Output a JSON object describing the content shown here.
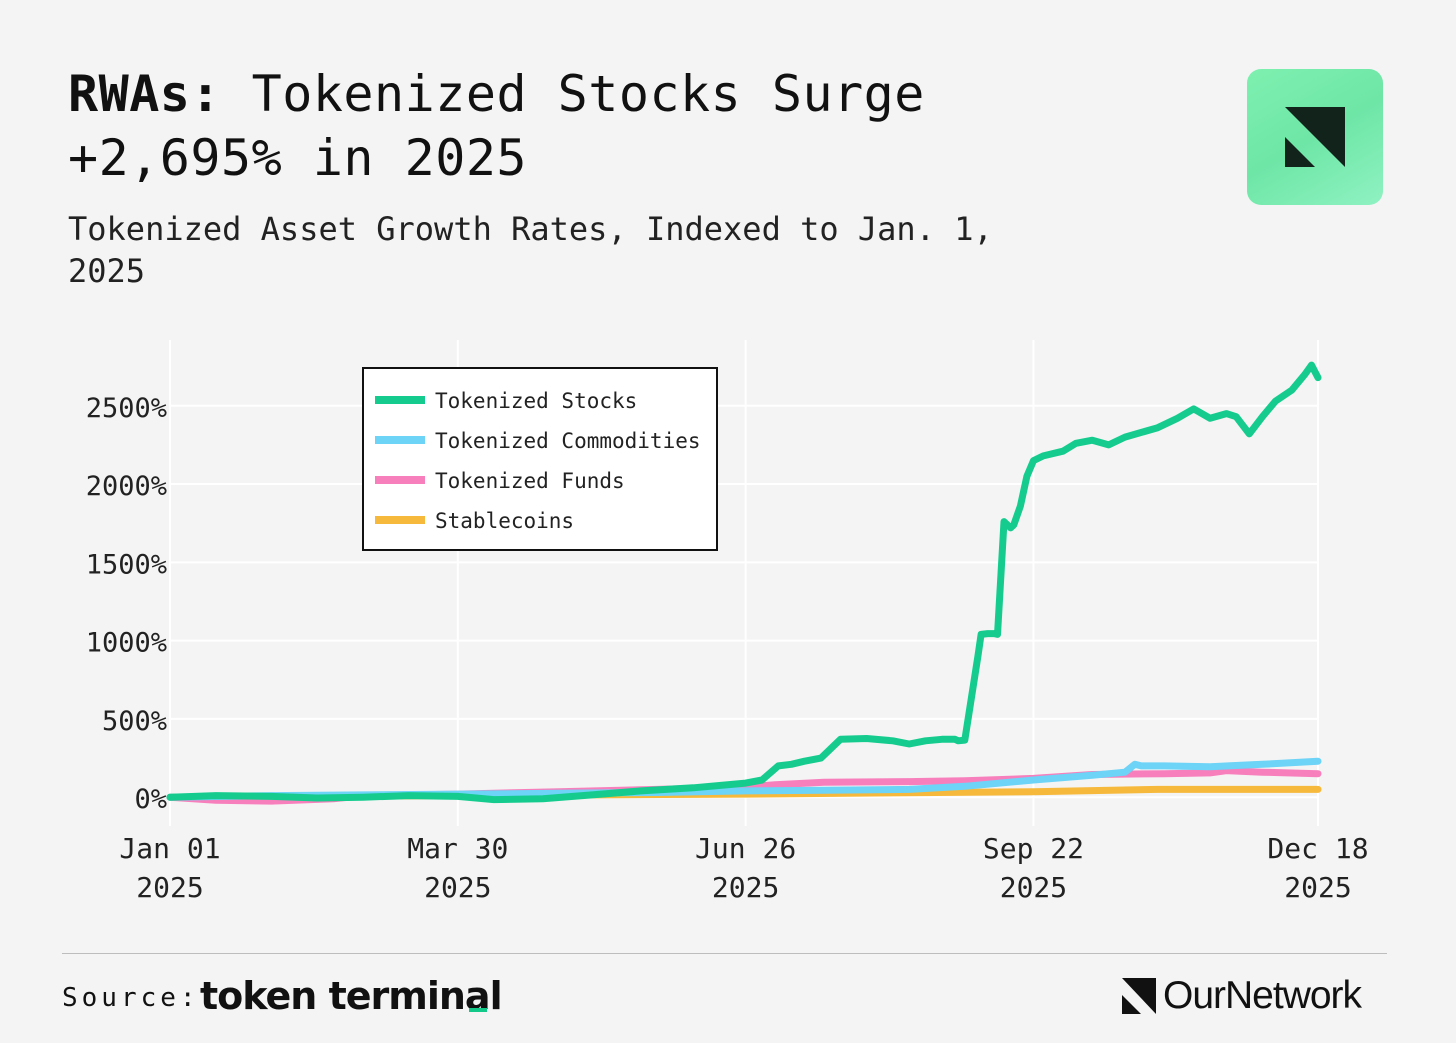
{
  "header": {
    "title_bold": "RWAs:",
    "title_rest": "Tokenized Stocks Surge +2,695% in 2025",
    "subtitle": "Tokenized Asset Growth Rates, Indexed to Jan. 1, 2025"
  },
  "footer": {
    "source_label": "Source:",
    "source_brand": "token terminal",
    "publisher": "OurNetwork"
  },
  "colors": {
    "background": "#f4f4f4",
    "logo_badge": "#7ef0b0",
    "source_accent": "#12c98a"
  },
  "chart_data": {
    "type": "line",
    "x_axis_type": "date",
    "xlim": [
      "2025-01-01",
      "2025-12-18"
    ],
    "x_ticks": [
      {
        "date": "2025-01-01",
        "label": [
          "Jan 01",
          "2025"
        ]
      },
      {
        "date": "2025-03-30",
        "label": [
          "Mar 30",
          "2025"
        ]
      },
      {
        "date": "2025-06-26",
        "label": [
          "Jun 26",
          "2025"
        ]
      },
      {
        "date": "2025-09-22",
        "label": [
          "Sep 22",
          "2025"
        ]
      },
      {
        "date": "2025-12-18",
        "label": [
          "Dec 18",
          "2025"
        ]
      }
    ],
    "ylim": [
      -120,
      2920
    ],
    "y_ticks": [
      0,
      500,
      1000,
      1500,
      2000,
      2500
    ],
    "y_tick_labels": [
      "0%",
      "500%",
      "1000%",
      "1500%",
      "2000%",
      "2500%"
    ],
    "grid": true,
    "legend_position": "top-left",
    "series": [
      {
        "name": "Tokenized Stocks",
        "color": "#15cc8e",
        "x": [
          "2025-01-01",
          "2025-01-15",
          "2025-02-01",
          "2025-02-15",
          "2025-03-01",
          "2025-03-15",
          "2025-03-30",
          "2025-04-10",
          "2025-04-25",
          "2025-05-10",
          "2025-05-25",
          "2025-06-10",
          "2025-06-26",
          "2025-07-01",
          "2025-07-06",
          "2025-07-10",
          "2025-07-14",
          "2025-07-19",
          "2025-07-25",
          "2025-08-02",
          "2025-08-10",
          "2025-08-15",
          "2025-08-20",
          "2025-08-25",
          "2025-08-29",
          "2025-08-30",
          "2025-09-01",
          "2025-09-05",
          "2025-09-06",
          "2025-09-08",
          "2025-09-10",
          "2025-09-11",
          "2025-09-13",
          "2025-09-15",
          "2025-09-16",
          "2025-09-18",
          "2025-09-20",
          "2025-09-22",
          "2025-09-25",
          "2025-10-01",
          "2025-10-05",
          "2025-10-10",
          "2025-10-15",
          "2025-10-20",
          "2025-10-25",
          "2025-10-30",
          "2025-11-05",
          "2025-11-10",
          "2025-11-15",
          "2025-11-20",
          "2025-11-23",
          "2025-11-27",
          "2025-12-01",
          "2025-12-05",
          "2025-12-10",
          "2025-12-14",
          "2025-12-16",
          "2025-12-18"
        ],
        "y": [
          0,
          10,
          5,
          -5,
          0,
          10,
          5,
          -15,
          -10,
          15,
          40,
          60,
          90,
          110,
          200,
          210,
          230,
          250,
          370,
          375,
          360,
          340,
          360,
          370,
          370,
          360,
          365,
          900,
          1040,
          1045,
          1045,
          1040,
          1760,
          1720,
          1740,
          1860,
          2050,
          2150,
          2180,
          2210,
          2260,
          2280,
          2250,
          2300,
          2330,
          2360,
          2420,
          2480,
          2420,
          2450,
          2430,
          2320,
          2430,
          2530,
          2600,
          2700,
          2760,
          2680
        ]
      },
      {
        "name": "Tokenized Commodities",
        "color": "#6dd3f7",
        "x": [
          "2025-01-01",
          "2025-02-01",
          "2025-03-01",
          "2025-03-30",
          "2025-04-30",
          "2025-05-30",
          "2025-06-26",
          "2025-07-20",
          "2025-08-15",
          "2025-09-01",
          "2025-09-22",
          "2025-10-10",
          "2025-10-20",
          "2025-10-23",
          "2025-10-25",
          "2025-11-01",
          "2025-11-15",
          "2025-12-01",
          "2025-12-18"
        ],
        "y": [
          0,
          10,
          15,
          20,
          25,
          30,
          40,
          45,
          50,
          70,
          110,
          140,
          160,
          210,
          200,
          200,
          195,
          210,
          230
        ]
      },
      {
        "name": "Tokenized Funds",
        "color": "#f77fbc",
        "x": [
          "2025-01-01",
          "2025-01-15",
          "2025-02-01",
          "2025-02-20",
          "2025-03-01",
          "2025-03-30",
          "2025-04-30",
          "2025-05-30",
          "2025-06-26",
          "2025-07-05",
          "2025-07-20",
          "2025-08-15",
          "2025-09-01",
          "2025-09-22",
          "2025-10-10",
          "2025-11-01",
          "2025-11-15",
          "2025-11-20",
          "2025-12-01",
          "2025-12-18"
        ],
        "y": [
          0,
          -20,
          -25,
          -10,
          10,
          20,
          35,
          50,
          65,
          80,
          95,
          100,
          105,
          120,
          145,
          150,
          155,
          170,
          160,
          150
        ]
      },
      {
        "name": "Stablecoins",
        "color": "#f6b93b",
        "x": [
          "2025-01-01",
          "2025-03-30",
          "2025-06-26",
          "2025-09-22",
          "2025-10-30",
          "2025-12-18"
        ],
        "y": [
          0,
          10,
          20,
          35,
          50,
          50
        ]
      }
    ]
  }
}
